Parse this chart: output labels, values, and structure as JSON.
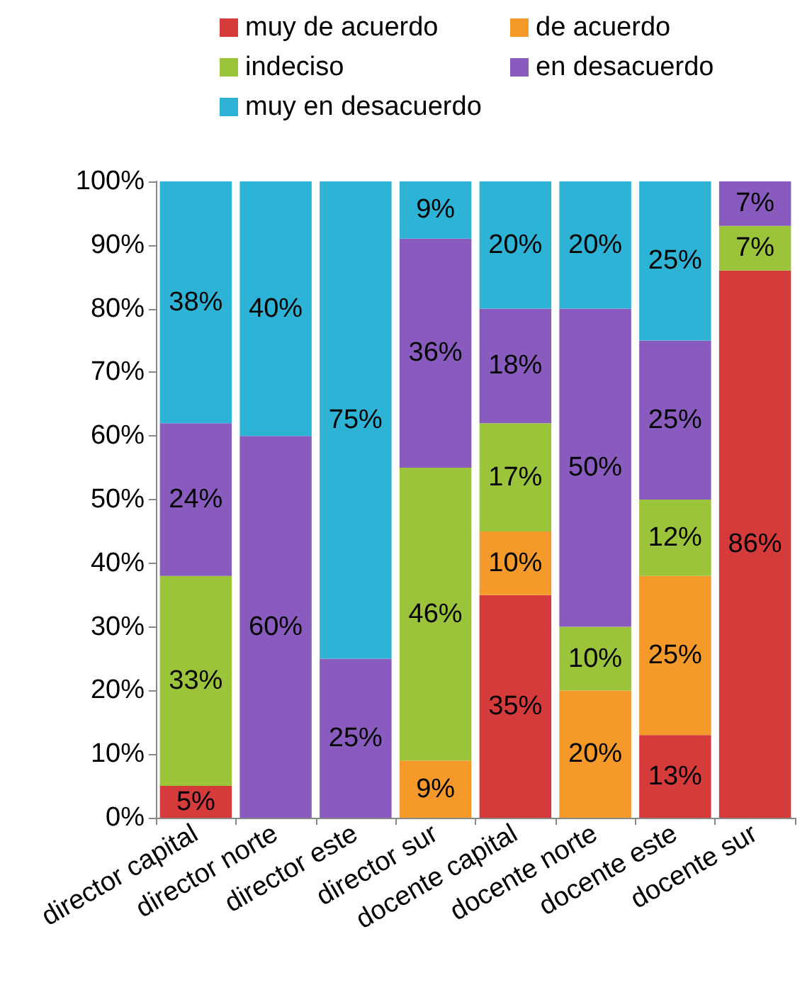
{
  "chart_data": {
    "type": "bar",
    "stacked": true,
    "categories": [
      "director capital",
      "director norte",
      "director este",
      "director sur",
      "docente capital",
      "docente norte",
      "docente este",
      "docente sur"
    ],
    "series": [
      {
        "name": "muy de acuerdo",
        "color": "#d63b3b",
        "values": [
          5,
          0,
          0,
          0,
          35,
          0,
          13,
          86
        ],
        "value_labels": [
          "5%",
          null,
          null,
          null,
          "35%",
          null,
          "13%",
          "86%"
        ]
      },
      {
        "name": "de acuerdo",
        "color": "#f59a2a",
        "values": [
          0,
          0,
          0,
          9,
          10,
          20,
          25,
          0
        ],
        "value_labels": [
          null,
          null,
          null,
          "9%",
          "10%",
          "20%",
          "25%",
          null
        ]
      },
      {
        "name": "indeciso",
        "color": "#9cc43a",
        "values": [
          33,
          0,
          0,
          46,
          17,
          10,
          12,
          7
        ],
        "value_labels": [
          "33%",
          null,
          null,
          "46%",
          "17%",
          "10%",
          "12%",
          "7%"
        ]
      },
      {
        "name": "en desacuerdo",
        "color": "#8a5bbf",
        "values": [
          24,
          60,
          25,
          36,
          18,
          50,
          25,
          7
        ],
        "value_labels": [
          "24%",
          "60%",
          "25%",
          "36%",
          "18%",
          "50%",
          "25%",
          "7%"
        ]
      },
      {
        "name": "muy en desacuerdo",
        "color": "#2db3d6",
        "values": [
          38,
          40,
          75,
          9,
          20,
          20,
          25,
          0
        ],
        "value_labels": [
          "38%",
          "40%",
          "75%",
          "9%",
          "20%",
          "20%",
          "25%",
          null
        ]
      }
    ],
    "ylim": [
      0,
      100
    ],
    "yticks": [
      {
        "value": 0,
        "label": "0%"
      },
      {
        "value": 10,
        "label": "10%"
      },
      {
        "value": 20,
        "label": "20%"
      },
      {
        "value": 30,
        "label": "30%"
      },
      {
        "value": 40,
        "label": "40%"
      },
      {
        "value": 50,
        "label": "50%"
      },
      {
        "value": 60,
        "label": "60%"
      },
      {
        "value": 70,
        "label": "70%"
      },
      {
        "value": 80,
        "label": "80%"
      },
      {
        "value": 90,
        "label": "90%"
      },
      {
        "value": 100,
        "label": "100%"
      }
    ],
    "grid": false,
    "legend": "top"
  }
}
